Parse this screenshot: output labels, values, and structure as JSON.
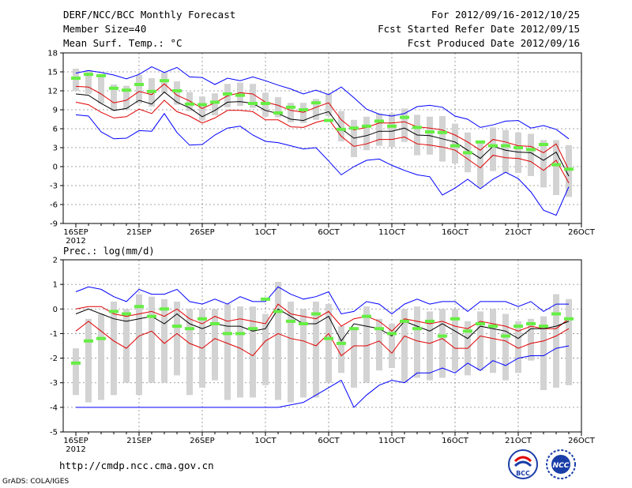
{
  "header": {
    "title": "DERF/NCC/BCC Monthly Forecast",
    "member_size": "Member Size=40",
    "variable": "Mean Surf. Temp.: °C",
    "period": "For 2012/09/16-2012/10/25",
    "started": "Fcst Started Refer Date 2012/09/15",
    "produced": "Fcst Produced Date 2012/09/16"
  },
  "footer": {
    "url": "http://cmdp.ncc.cma.gov.cn",
    "credit": "GrADS: COLA/IGES",
    "logo_left_text": "BCC",
    "logo_right_text": "NCC"
  },
  "colors": {
    "envelope": "#0000ff",
    "quartile": "#e00000",
    "median": "#000000",
    "box": "#d3d3d3",
    "observation": "#66ee44",
    "grid": "#888888"
  },
  "chart_data": [
    {
      "type": "box-ensemble",
      "title": "Mean Surf. Temp.: °C",
      "ylabel": "°C",
      "ylim": [
        -9,
        18
      ],
      "yticks": [
        -9,
        -6,
        -3,
        0,
        3,
        6,
        9,
        12,
        15,
        18
      ],
      "xtick_labels": [
        "16SEP",
        "21SEP",
        "26SEP",
        "1OCT",
        "6OCT",
        "11OCT",
        "16OCT",
        "21OCT",
        "26OCT"
      ],
      "xtick_year": "2012",
      "days": 40,
      "max": [
        14.8,
        15.2,
        14.9,
        14.5,
        13.9,
        14.6,
        15.8,
        14.9,
        15.7,
        14.2,
        14.1,
        13.0,
        14.0,
        13.6,
        14.2,
        13.6,
        12.9,
        12.3,
        11.5,
        12.1,
        11.4,
        12.6,
        10.9,
        9.1,
        8.3,
        8.0,
        8.4,
        9.5,
        9.7,
        9.4,
        8.0,
        7.5,
        6.2,
        6.6,
        7.2,
        7.3,
        6.1,
        6.5,
        5.9,
        4.4
      ],
      "q3": [
        12.7,
        12.6,
        11.5,
        10.1,
        10.5,
        11.9,
        11.4,
        13.1,
        11.3,
        10.4,
        9.2,
        10.1,
        11.2,
        11.7,
        11.5,
        10.2,
        9.7,
        8.9,
        8.6,
        9.4,
        10.1,
        7.4,
        5.8,
        6.2,
        6.9,
        6.9,
        7.1,
        6.3,
        6.1,
        5.8,
        5.0,
        3.9,
        2.6,
        4.3,
        3.9,
        3.3,
        3.2,
        2.2,
        3.6,
        -0.5
      ],
      "median": [
        11.5,
        11.3,
        10.0,
        8.9,
        9.2,
        10.5,
        9.9,
        11.8,
        10.2,
        9.3,
        7.9,
        8.9,
        10.2,
        10.3,
        10.0,
        8.9,
        8.4,
        7.5,
        7.3,
        8.1,
        8.7,
        6.0,
        4.5,
        4.9,
        5.6,
        5.6,
        6.1,
        5.0,
        4.9,
        4.4,
        3.9,
        2.6,
        1.3,
        3.2,
        2.6,
        2.3,
        2.2,
        1.0,
        2.3,
        -1.5
      ],
      "q1": [
        10.2,
        9.8,
        8.6,
        7.7,
        7.9,
        9.1,
        8.4,
        10.5,
        8.7,
        8.0,
        6.9,
        7.7,
        8.9,
        8.9,
        8.7,
        7.4,
        7.4,
        6.3,
        6.2,
        7.0,
        7.5,
        4.8,
        3.2,
        3.6,
        4.3,
        4.3,
        4.7,
        3.6,
        3.4,
        3.1,
        2.6,
        1.2,
        -0.2,
        1.8,
        1.4,
        1.3,
        0.8,
        -0.6,
        1.0,
        -2.6
      ],
      "min": [
        8.2,
        8.0,
        5.5,
        4.4,
        4.5,
        5.7,
        5.6,
        8.4,
        5.4,
        3.4,
        3.5,
        5.0,
        6.1,
        6.4,
        5.0,
        4.0,
        3.8,
        3.3,
        2.8,
        3.0,
        0.9,
        -1.3,
        0.0,
        1.0,
        1.2,
        0.2,
        -0.6,
        -1.3,
        -1.6,
        -4.5,
        -3.4,
        -2.0,
        -3.5,
        -2.0,
        -0.9,
        -1.9,
        -4.0,
        -6.9,
        -7.7,
        -3.2
      ],
      "box_top": [
        15.5,
        15.3,
        14.5,
        13.0,
        12.8,
        14.5,
        14.0,
        14.9,
        13.5,
        11.8,
        11.1,
        11.6,
        13.1,
        13.3,
        13.1,
        11.7,
        11.0,
        10.1,
        10.1,
        10.7,
        11.5,
        8.8,
        7.4,
        7.9,
        8.4,
        8.4,
        9.2,
        8.2,
        7.9,
        8.0,
        6.8,
        5.4,
        3.9,
        6.2,
        5.8,
        5.4,
        5.2,
        4.2,
        4.2,
        3.4
      ],
      "box_bottom": [
        12.0,
        11.5,
        10.0,
        8.8,
        9.0,
        10.0,
        9.5,
        11.7,
        9.8,
        8.8,
        7.3,
        8.1,
        9.4,
        9.6,
        9.3,
        7.9,
        7.8,
        7.0,
        6.9,
        7.4,
        8.0,
        4.0,
        1.5,
        2.6,
        3.3,
        3.1,
        3.9,
        1.8,
        1.9,
        0.8,
        0.5,
        -0.9,
        -3.3,
        -0.7,
        -1.0,
        -1.0,
        -1.5,
        -3.3,
        -4.5,
        -4.8
      ],
      "observed": [
        14.0,
        14.6,
        14.4,
        12.4,
        12.1,
        13.0,
        11.9,
        13.6,
        12.0,
        9.9,
        9.8,
        10.2,
        11.5,
        11.3,
        10.0,
        10.0,
        8.5,
        9.4,
        9.0,
        10.1,
        7.3,
        5.9,
        6.1,
        6.4,
        7.2,
        6.4,
        7.8,
        6.2,
        5.5,
        5.4,
        3.3,
        2.2,
        3.9,
        3.3,
        3.3,
        3.0,
        2.7,
        3.5,
        0.3,
        -0.4
      ]
    },
    {
      "type": "box-ensemble",
      "title": "Prec.: log(mm/d)",
      "ylabel": "log(mm/d)",
      "ylim": [
        -5,
        2
      ],
      "yticks": [
        -5,
        -4,
        -3,
        -2,
        -1,
        0,
        1,
        2
      ],
      "xtick_labels": [
        "16SEP",
        "21SEP",
        "26SEP",
        "1OCT",
        "6OCT",
        "11OCT",
        "16OCT",
        "21OCT",
        "26OCT"
      ],
      "xtick_year": "2012",
      "days": 40,
      "max": [
        0.7,
        0.9,
        0.8,
        0.5,
        0.3,
        0.8,
        0.6,
        0.6,
        0.8,
        0.3,
        0.2,
        0.4,
        0.2,
        0.5,
        0.3,
        0.3,
        0.9,
        0.6,
        0.4,
        0.5,
        0.7,
        -0.2,
        -0.1,
        0.3,
        0.2,
        -0.2,
        0.2,
        0.4,
        0.2,
        0.3,
        0.3,
        -0.1,
        0.3,
        0.3,
        0.3,
        0.1,
        0.3,
        -0.1,
        0.2,
        0.2
      ],
      "q3": [
        0.0,
        0.1,
        0.1,
        -0.2,
        -0.3,
        -0.2,
        -0.1,
        -0.3,
        0.0,
        -0.4,
        -0.6,
        -0.3,
        -0.5,
        -0.4,
        -0.5,
        -0.6,
        0.2,
        -0.2,
        -0.3,
        -0.4,
        -0.1,
        -0.7,
        -0.4,
        -0.3,
        -0.5,
        -0.9,
        -0.4,
        -0.5,
        -0.6,
        -0.5,
        -0.7,
        -0.8,
        -0.5,
        -0.6,
        -0.7,
        -0.9,
        -0.7,
        -0.8,
        -0.8,
        -0.4
      ],
      "median": [
        -0.2,
        0.0,
        -0.2,
        -0.4,
        -0.5,
        -0.4,
        -0.3,
        -0.6,
        -0.2,
        -0.6,
        -0.8,
        -0.6,
        -0.7,
        -0.7,
        -0.9,
        -0.8,
        0.0,
        -0.3,
        -0.6,
        -0.6,
        -0.3,
        -1.3,
        -0.6,
        -0.7,
        -0.8,
        -1.1,
        -0.5,
        -0.7,
        -0.9,
        -0.6,
        -0.9,
        -1.2,
        -0.7,
        -0.8,
        -0.9,
        -1.2,
        -0.8,
        -0.8,
        -0.7,
        -0.5
      ],
      "q1": [
        -0.9,
        -0.5,
        -0.9,
        -1.3,
        -1.6,
        -1.1,
        -0.9,
        -1.4,
        -1.0,
        -1.4,
        -1.6,
        -1.2,
        -1.4,
        -1.6,
        -1.9,
        -1.3,
        -1.0,
        -1.2,
        -1.3,
        -1.5,
        -1.0,
        -1.9,
        -1.5,
        -1.5,
        -1.3,
        -1.8,
        -1.1,
        -1.3,
        -1.4,
        -1.2,
        -1.6,
        -1.6,
        -1.1,
        -1.2,
        -1.3,
        -1.6,
        -1.4,
        -1.3,
        -1.1,
        -0.8
      ],
      "min": [
        -4.0,
        -4.0,
        -4.0,
        -4.0,
        -4.0,
        -4.0,
        -4.0,
        -4.0,
        -4.0,
        -4.0,
        -4.0,
        -4.0,
        -4.0,
        -4.0,
        -4.0,
        -4.0,
        -4.0,
        -3.9,
        -3.8,
        -3.5,
        -3.2,
        -2.9,
        -4.0,
        -3.5,
        -3.1,
        -2.9,
        -3.0,
        -2.6,
        -2.6,
        -2.4,
        -2.6,
        -2.2,
        -2.5,
        -2.1,
        -2.3,
        -2.0,
        -1.9,
        -1.9,
        -1.6,
        -1.5
      ],
      "box_top": [
        -1.6,
        -0.4,
        -0.2,
        0.3,
        0.0,
        0.6,
        0.5,
        0.4,
        0.3,
        0.0,
        0.0,
        0.0,
        0.2,
        0.1,
        0.1,
        -0.2,
        1.1,
        0.3,
        0.0,
        0.3,
        0.2,
        -0.7,
        -0.8,
        0.1,
        -0.4,
        -0.6,
        0.0,
        0.1,
        -0.1,
        0.0,
        0.0,
        -0.5,
        -0.1,
        0.0,
        -0.2,
        -0.5,
        -0.4,
        -0.3,
        0.6,
        0.4
      ],
      "box_bottom": [
        -3.5,
        -3.8,
        -3.7,
        -3.5,
        -3.0,
        -3.5,
        -3.0,
        -3.0,
        -2.7,
        -3.5,
        -3.2,
        -2.9,
        -3.7,
        -3.6,
        -3.6,
        -3.1,
        -3.7,
        -3.8,
        -3.6,
        -3.6,
        -3.0,
        -2.6,
        -3.2,
        -3.0,
        -2.5,
        -2.4,
        -3.0,
        -2.8,
        -2.9,
        -2.8,
        -2.5,
        -2.7,
        -2.5,
        -2.6,
        -2.9,
        -2.6,
        -2.1,
        -3.3,
        -3.2,
        -3.1
      ],
      "observed": [
        -2.2,
        -1.3,
        -1.2,
        -0.1,
        -0.2,
        0.1,
        -0.3,
        0.0,
        -0.7,
        -0.8,
        -0.4,
        -0.6,
        -1.0,
        -1.0,
        -0.8,
        0.4,
        -0.1,
        -0.5,
        -0.6,
        -0.2,
        -1.2,
        -1.4,
        -0.8,
        -0.3,
        -0.8,
        -1.0,
        -0.5,
        -0.8,
        -0.5,
        -1.1,
        -0.4,
        -0.9,
        -0.6,
        -0.7,
        -1.1,
        -0.7,
        -0.6,
        -0.7,
        -0.2,
        -0.4
      ]
    }
  ]
}
